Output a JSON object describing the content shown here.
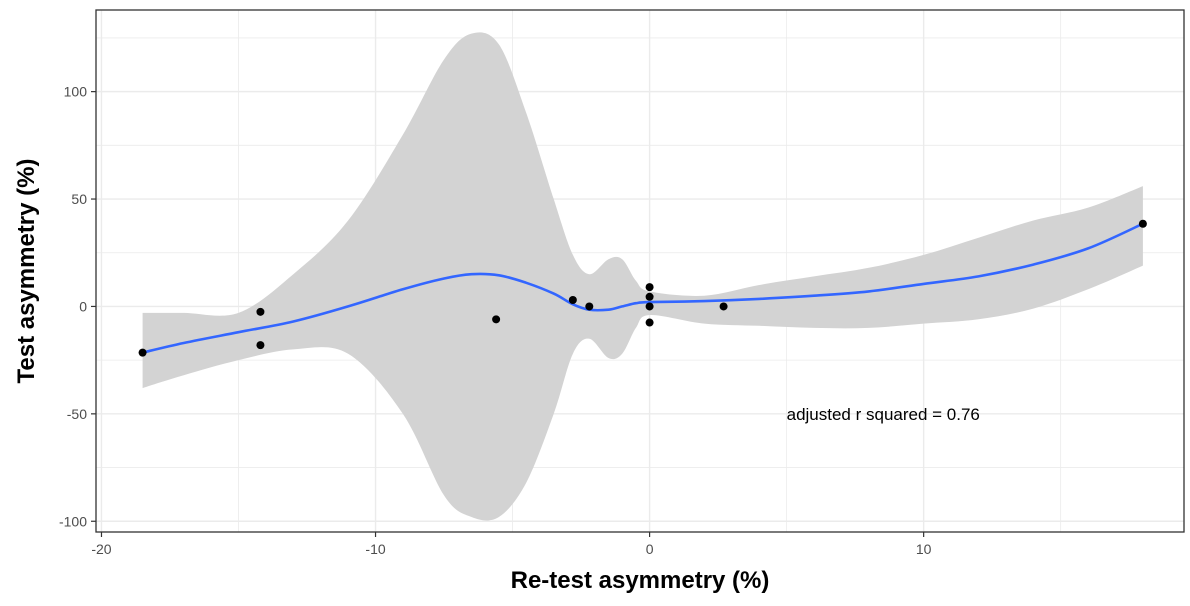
{
  "chart_data": {
    "type": "scatter",
    "xlabel": "Re-test asymmetry (%)",
    "ylabel": "Test asymmetry (%)",
    "xlim": [
      -20.2,
      19.5
    ],
    "ylim": [
      -105,
      138
    ],
    "x_ticks": [
      -20,
      -10,
      0,
      10
    ],
    "y_ticks": [
      -100,
      -50,
      0,
      50,
      100
    ],
    "x_tick_labels": [
      "-20",
      "-10",
      "0",
      "10"
    ],
    "y_tick_labels": [
      "-100",
      "-50",
      "0",
      "50",
      "100"
    ],
    "grid": true,
    "annotation": "adjusted r squared = 0.76",
    "colors": {
      "points": "#000000",
      "smooth_line": "#3366FF",
      "confidence_band": "#d3d3d3",
      "grid": "#ebebeb",
      "panel_border": "#333333"
    },
    "points": [
      {
        "x": -18.5,
        "y": -21.5
      },
      {
        "x": -14.2,
        "y": -2.5
      },
      {
        "x": -14.2,
        "y": -18
      },
      {
        "x": -5.6,
        "y": -6
      },
      {
        "x": -2.8,
        "y": 3
      },
      {
        "x": -2.2,
        "y": 0
      },
      {
        "x": 0,
        "y": 9
      },
      {
        "x": 0,
        "y": 4.5
      },
      {
        "x": 0,
        "y": 0
      },
      {
        "x": 0,
        "y": -7.5
      },
      {
        "x": 2.7,
        "y": 0
      },
      {
        "x": 18,
        "y": 38.5
      }
    ],
    "smooth": {
      "x": [
        -18.5,
        -17,
        -15,
        -13,
        -11,
        -9,
        -7.5,
        -6.5,
        -5.5,
        -4.5,
        -3.5,
        -2.8,
        -2.2,
        -1.5,
        -1,
        -0.5,
        0,
        2,
        4,
        6,
        8,
        10,
        12,
        14,
        16,
        18
      ],
      "y": [
        -21.5,
        -17,
        -12,
        -7,
        0,
        8,
        13,
        15,
        14.5,
        11,
        6,
        1,
        -1.5,
        -1.5,
        0,
        1.5,
        2,
        2.5,
        3.5,
        5,
        7,
        10.5,
        14,
        19.5,
        27,
        38.5
      ],
      "upper": [
        -3,
        -3,
        -3,
        15,
        40,
        80,
        115,
        127,
        122,
        90,
        50,
        24,
        15,
        22,
        22,
        12,
        7,
        5,
        10,
        14,
        18,
        24,
        32,
        40,
        46,
        56
      ],
      "lower": [
        -38,
        -32,
        -25,
        -20,
        -22,
        -50,
        -88,
        -98,
        -98,
        -82,
        -50,
        -22,
        -15,
        -24,
        -22,
        -10,
        -4,
        -8,
        -9,
        -10,
        -10,
        -8,
        -6,
        -1,
        8,
        19
      ]
    }
  }
}
